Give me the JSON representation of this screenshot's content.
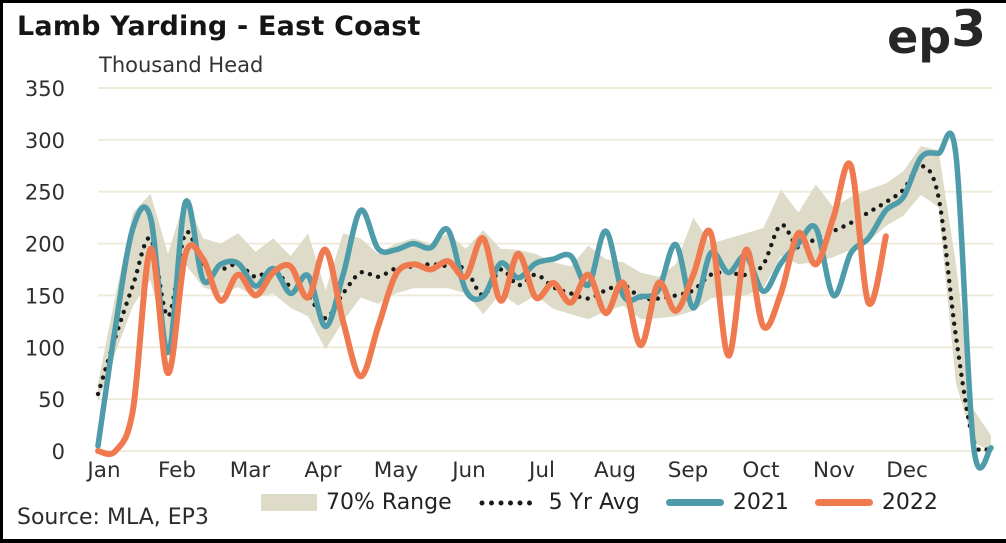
{
  "header": {
    "title": "Lamb Yarding - East Coast",
    "subtitle": "Thousand Head",
    "logo_text": "ep",
    "logo_super": "3"
  },
  "footer": {
    "source": "Source: MLA, EP3"
  },
  "legend": [
    {
      "label": "70% Range"
    },
    {
      "label": "5 Yr Avg"
    },
    {
      "label": "2021"
    },
    {
      "label": "2022"
    }
  ],
  "colors": {
    "band": "#DEDCC8",
    "avg": "#1A1A1A",
    "series_2021": "#4E9CAA",
    "series_2022": "#F07A4F",
    "grid": "#EFEBDC",
    "axis_text": "#2E2E2E"
  },
  "chart_data": {
    "type": "line",
    "title": "Lamb Yarding - East Coast",
    "ylabel": "Thousand Head",
    "xlabel": "",
    "ylim": [
      0,
      350
    ],
    "yticks": [
      0,
      50,
      100,
      150,
      200,
      250,
      300,
      350
    ],
    "grid": true,
    "legend_position": "bottom",
    "x_unit": "week",
    "weeks": 52,
    "categories": [
      "Jan",
      "Feb",
      "Mar",
      "Apr",
      "May",
      "Jun",
      "Jul",
      "Aug",
      "Sep",
      "Oct",
      "Nov",
      "Dec"
    ],
    "series": [
      {
        "name": "70% Range",
        "type": "band",
        "upper": [
          65,
          150,
          230,
          248,
          190,
          245,
          205,
          200,
          210,
          192,
          205,
          188,
          210,
          155,
          210,
          205,
          190,
          200,
          205,
          200,
          210,
          195,
          213,
          195,
          194,
          190,
          182,
          178,
          198,
          185,
          182,
          172,
          168,
          180,
          225,
          200,
          205,
          210,
          215,
          252,
          230,
          257,
          235,
          245,
          252,
          258,
          270,
          294,
          290,
          180,
          40,
          15
        ],
        "lower": [
          48,
          95,
          140,
          165,
          95,
          180,
          158,
          152,
          158,
          148,
          152,
          138,
          130,
          98,
          125,
          148,
          142,
          152,
          157,
          157,
          157,
          152,
          132,
          152,
          140,
          150,
          137,
          132,
          127,
          135,
          140,
          127,
          128,
          130,
          135,
          147,
          150,
          150,
          157,
          188,
          180,
          182,
          187,
          194,
          202,
          217,
          227,
          247,
          235,
          65,
          8,
          0
        ]
      },
      {
        "name": "5 Yr Avg",
        "type": "dotted",
        "values": [
          55,
          110,
          160,
          205,
          130,
          210,
          178,
          175,
          180,
          168,
          175,
          158,
          150,
          128,
          152,
          172,
          168,
          176,
          178,
          180,
          178,
          175,
          150,
          175,
          160,
          170,
          158,
          152,
          147,
          155,
          160,
          148,
          147,
          150,
          155,
          170,
          172,
          170,
          180,
          218,
          196,
          205,
          212,
          220,
          230,
          240,
          252,
          275,
          245,
          110,
          10,
          3
        ]
      },
      {
        "name": "2021",
        "type": "line",
        "values": [
          5,
          120,
          215,
          225,
          95,
          240,
          165,
          180,
          181,
          159,
          176,
          152,
          169,
          120,
          170,
          232,
          195,
          194,
          200,
          196,
          213,
          155,
          149,
          181,
          167,
          181,
          185,
          188,
          160,
          212,
          150,
          149,
          155,
          199,
          138,
          191,
          172,
          188,
          154,
          181,
          200,
          215,
          150,
          191,
          205,
          232,
          245,
          283,
          287,
          285,
          5,
          3
        ]
      },
      {
        "name": "2022",
        "type": "line",
        "values": [
          0,
          0,
          40,
          195,
          75,
          190,
          185,
          145,
          170,
          150,
          172,
          178,
          148,
          194,
          125,
          72,
          120,
          170,
          180,
          175,
          183,
          168,
          205,
          145,
          190,
          148,
          162,
          143,
          170,
          133,
          162,
          102,
          162,
          135,
          170,
          210,
          92,
          194,
          120,
          152,
          210,
          180,
          225,
          275,
          143,
          207
        ]
      }
    ]
  }
}
